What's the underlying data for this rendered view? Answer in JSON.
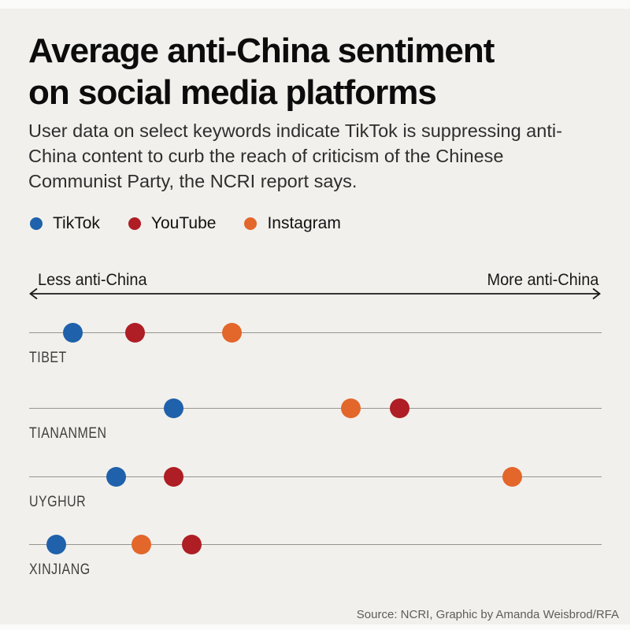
{
  "page": {
    "title_line1": "Average anti-China sentiment",
    "title_line2": "on social media platforms",
    "subtitle": "User data on select keywords indicate TikTok is suppressing anti-China content to curb the reach of criticism of the Chinese Communist Party, the NCRI report says.",
    "source": "Source: NCRI, Graphic by Amanda Weisbrod/RFA",
    "background_color": "#f1f0ec"
  },
  "axis": {
    "left_label": "Less anti-China",
    "right_label": "More anti-China"
  },
  "chart_data": {
    "type": "scatter",
    "title": "Average anti-China sentiment on social media platforms",
    "subtitle": "User data on select keywords indicate TikTok is suppressing anti-China content to curb the reach of criticism of the Chinese Communist Party, the NCRI report says.",
    "x_axis": {
      "min_label": "Less anti-China",
      "max_label": "More anti-China",
      "ticks": "none",
      "range": [
        0,
        100
      ],
      "unit": "relative position, % of axis length (axis is unlabeled)"
    },
    "categories": [
      "TIBET",
      "TIANANMEN",
      "UYGHUR",
      "XINJIANG"
    ],
    "series": [
      {
        "name": "TikTok",
        "color": "#1f61ab",
        "values": [
          7.7,
          25.2,
          15.2,
          4.8
        ]
      },
      {
        "name": "YouTube",
        "color": "#ae1e24",
        "values": [
          18.5,
          64.7,
          25.2,
          28.4
        ]
      },
      {
        "name": "Instagram",
        "color": "#e3662b",
        "values": [
          35.4,
          56.2,
          84.4,
          19.6
        ]
      }
    ],
    "legend_position": "top",
    "grid": false,
    "line_color": "#97958f",
    "source": "Source: NCRI, Graphic by Amanda Weisbrod/RFA"
  }
}
